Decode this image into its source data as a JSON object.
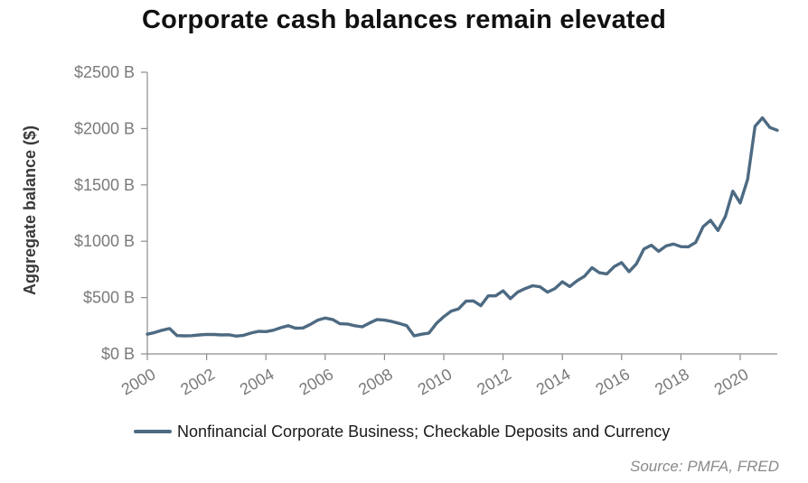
{
  "chart_data": {
    "type": "line",
    "title": "Corporate cash balances remain elevated",
    "ylabel": "Aggregate balance ($)",
    "xlabel": "",
    "xlim": [
      2000,
      2021.25
    ],
    "ylim": [
      0,
      2500
    ],
    "x_ticks": [
      2000,
      2002,
      2004,
      2006,
      2008,
      2010,
      2012,
      2014,
      2016,
      2018,
      2020
    ],
    "x_tick_labels": [
      "2000",
      "2002",
      "2004",
      "2006",
      "2008",
      "2010",
      "2012",
      "2014",
      "2016",
      "2018",
      "2020"
    ],
    "y_ticks": [
      0,
      500,
      1000,
      1500,
      2000,
      2500
    ],
    "y_tick_labels": [
      "$0 B",
      "$500 B",
      "$1000 B",
      "$1500 B",
      "$2000 B",
      "$2500 B"
    ],
    "grid": false,
    "legend_position": "bottom",
    "series": [
      {
        "name": "Nonfinancial Corporate Business; Checkable Deposits and Currency",
        "color": "#4d6a82",
        "points": [
          [
            2000.0,
            175
          ],
          [
            2000.25,
            190
          ],
          [
            2000.5,
            210
          ],
          [
            2000.75,
            225
          ],
          [
            2001.0,
            163
          ],
          [
            2001.25,
            160
          ],
          [
            2001.5,
            162
          ],
          [
            2001.75,
            168
          ],
          [
            2002.0,
            173
          ],
          [
            2002.25,
            172
          ],
          [
            2002.5,
            168
          ],
          [
            2002.75,
            170
          ],
          [
            2003.0,
            158
          ],
          [
            2003.25,
            165
          ],
          [
            2003.5,
            185
          ],
          [
            2003.75,
            200
          ],
          [
            2004.0,
            198
          ],
          [
            2004.25,
            210
          ],
          [
            2004.5,
            232
          ],
          [
            2004.75,
            250
          ],
          [
            2005.0,
            228
          ],
          [
            2005.25,
            230
          ],
          [
            2005.5,
            262
          ],
          [
            2005.75,
            300
          ],
          [
            2006.0,
            318
          ],
          [
            2006.25,
            305
          ],
          [
            2006.5,
            268
          ],
          [
            2006.75,
            265
          ],
          [
            2007.0,
            250
          ],
          [
            2007.25,
            240
          ],
          [
            2007.5,
            275
          ],
          [
            2007.75,
            305
          ],
          [
            2008.0,
            300
          ],
          [
            2008.25,
            288
          ],
          [
            2008.5,
            270
          ],
          [
            2008.75,
            250
          ],
          [
            2009.0,
            160
          ],
          [
            2009.25,
            175
          ],
          [
            2009.5,
            185
          ],
          [
            2009.75,
            270
          ],
          [
            2010.0,
            330
          ],
          [
            2010.25,
            380
          ],
          [
            2010.5,
            400
          ],
          [
            2010.75,
            468
          ],
          [
            2011.0,
            470
          ],
          [
            2011.25,
            428
          ],
          [
            2011.5,
            515
          ],
          [
            2011.75,
            515
          ],
          [
            2012.0,
            560
          ],
          [
            2012.25,
            490
          ],
          [
            2012.5,
            550
          ],
          [
            2012.75,
            580
          ],
          [
            2013.0,
            605
          ],
          [
            2013.25,
            595
          ],
          [
            2013.5,
            548
          ],
          [
            2013.75,
            580
          ],
          [
            2014.0,
            640
          ],
          [
            2014.25,
            598
          ],
          [
            2014.5,
            650
          ],
          [
            2014.75,
            690
          ],
          [
            2015.0,
            765
          ],
          [
            2015.25,
            720
          ],
          [
            2015.5,
            710
          ],
          [
            2015.75,
            775
          ],
          [
            2016.0,
            810
          ],
          [
            2016.25,
            730
          ],
          [
            2016.5,
            800
          ],
          [
            2016.75,
            930
          ],
          [
            2017.0,
            965
          ],
          [
            2017.25,
            910
          ],
          [
            2017.5,
            958
          ],
          [
            2017.75,
            975
          ],
          [
            2018.0,
            952
          ],
          [
            2018.25,
            950
          ],
          [
            2018.5,
            990
          ],
          [
            2018.75,
            1130
          ],
          [
            2019.0,
            1185
          ],
          [
            2019.25,
            1095
          ],
          [
            2019.5,
            1220
          ],
          [
            2019.75,
            1445
          ],
          [
            2020.0,
            1340
          ],
          [
            2020.25,
            1550
          ],
          [
            2020.5,
            2020
          ],
          [
            2020.75,
            2095
          ],
          [
            2021.0,
            2010
          ],
          [
            2021.25,
            1985
          ]
        ]
      }
    ],
    "source": "Source: PMFA, FRED"
  }
}
